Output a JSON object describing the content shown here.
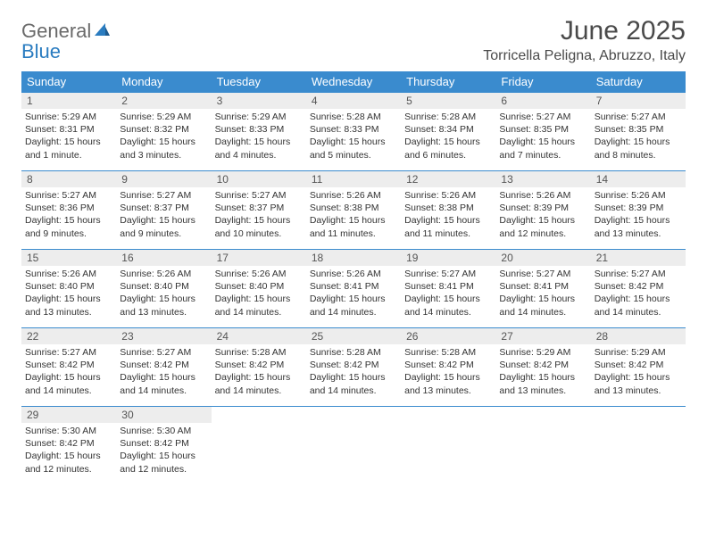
{
  "logo": {
    "word1": "General",
    "word2": "Blue"
  },
  "title": "June 2025",
  "location": "Torricella Peligna, Abruzzo, Italy",
  "header_bg": "#3a8bce",
  "day_headers": [
    "Sunday",
    "Monday",
    "Tuesday",
    "Wednesday",
    "Thursday",
    "Friday",
    "Saturday"
  ],
  "weeks": [
    [
      {
        "n": "1",
        "sr": "Sunrise: 5:29 AM",
        "ss": "Sunset: 8:31 PM",
        "dl": "Daylight: 15 hours and 1 minute."
      },
      {
        "n": "2",
        "sr": "Sunrise: 5:29 AM",
        "ss": "Sunset: 8:32 PM",
        "dl": "Daylight: 15 hours and 3 minutes."
      },
      {
        "n": "3",
        "sr": "Sunrise: 5:29 AM",
        "ss": "Sunset: 8:33 PM",
        "dl": "Daylight: 15 hours and 4 minutes."
      },
      {
        "n": "4",
        "sr": "Sunrise: 5:28 AM",
        "ss": "Sunset: 8:33 PM",
        "dl": "Daylight: 15 hours and 5 minutes."
      },
      {
        "n": "5",
        "sr": "Sunrise: 5:28 AM",
        "ss": "Sunset: 8:34 PM",
        "dl": "Daylight: 15 hours and 6 minutes."
      },
      {
        "n": "6",
        "sr": "Sunrise: 5:27 AM",
        "ss": "Sunset: 8:35 PM",
        "dl": "Daylight: 15 hours and 7 minutes."
      },
      {
        "n": "7",
        "sr": "Sunrise: 5:27 AM",
        "ss": "Sunset: 8:35 PM",
        "dl": "Daylight: 15 hours and 8 minutes."
      }
    ],
    [
      {
        "n": "8",
        "sr": "Sunrise: 5:27 AM",
        "ss": "Sunset: 8:36 PM",
        "dl": "Daylight: 15 hours and 9 minutes."
      },
      {
        "n": "9",
        "sr": "Sunrise: 5:27 AM",
        "ss": "Sunset: 8:37 PM",
        "dl": "Daylight: 15 hours and 9 minutes."
      },
      {
        "n": "10",
        "sr": "Sunrise: 5:27 AM",
        "ss": "Sunset: 8:37 PM",
        "dl": "Daylight: 15 hours and 10 minutes."
      },
      {
        "n": "11",
        "sr": "Sunrise: 5:26 AM",
        "ss": "Sunset: 8:38 PM",
        "dl": "Daylight: 15 hours and 11 minutes."
      },
      {
        "n": "12",
        "sr": "Sunrise: 5:26 AM",
        "ss": "Sunset: 8:38 PM",
        "dl": "Daylight: 15 hours and 11 minutes."
      },
      {
        "n": "13",
        "sr": "Sunrise: 5:26 AM",
        "ss": "Sunset: 8:39 PM",
        "dl": "Daylight: 15 hours and 12 minutes."
      },
      {
        "n": "14",
        "sr": "Sunrise: 5:26 AM",
        "ss": "Sunset: 8:39 PM",
        "dl": "Daylight: 15 hours and 13 minutes."
      }
    ],
    [
      {
        "n": "15",
        "sr": "Sunrise: 5:26 AM",
        "ss": "Sunset: 8:40 PM",
        "dl": "Daylight: 15 hours and 13 minutes."
      },
      {
        "n": "16",
        "sr": "Sunrise: 5:26 AM",
        "ss": "Sunset: 8:40 PM",
        "dl": "Daylight: 15 hours and 13 minutes."
      },
      {
        "n": "17",
        "sr": "Sunrise: 5:26 AM",
        "ss": "Sunset: 8:40 PM",
        "dl": "Daylight: 15 hours and 14 minutes."
      },
      {
        "n": "18",
        "sr": "Sunrise: 5:26 AM",
        "ss": "Sunset: 8:41 PM",
        "dl": "Daylight: 15 hours and 14 minutes."
      },
      {
        "n": "19",
        "sr": "Sunrise: 5:27 AM",
        "ss": "Sunset: 8:41 PM",
        "dl": "Daylight: 15 hours and 14 minutes."
      },
      {
        "n": "20",
        "sr": "Sunrise: 5:27 AM",
        "ss": "Sunset: 8:41 PM",
        "dl": "Daylight: 15 hours and 14 minutes."
      },
      {
        "n": "21",
        "sr": "Sunrise: 5:27 AM",
        "ss": "Sunset: 8:42 PM",
        "dl": "Daylight: 15 hours and 14 minutes."
      }
    ],
    [
      {
        "n": "22",
        "sr": "Sunrise: 5:27 AM",
        "ss": "Sunset: 8:42 PM",
        "dl": "Daylight: 15 hours and 14 minutes."
      },
      {
        "n": "23",
        "sr": "Sunrise: 5:27 AM",
        "ss": "Sunset: 8:42 PM",
        "dl": "Daylight: 15 hours and 14 minutes."
      },
      {
        "n": "24",
        "sr": "Sunrise: 5:28 AM",
        "ss": "Sunset: 8:42 PM",
        "dl": "Daylight: 15 hours and 14 minutes."
      },
      {
        "n": "25",
        "sr": "Sunrise: 5:28 AM",
        "ss": "Sunset: 8:42 PM",
        "dl": "Daylight: 15 hours and 14 minutes."
      },
      {
        "n": "26",
        "sr": "Sunrise: 5:28 AM",
        "ss": "Sunset: 8:42 PM",
        "dl": "Daylight: 15 hours and 13 minutes."
      },
      {
        "n": "27",
        "sr": "Sunrise: 5:29 AM",
        "ss": "Sunset: 8:42 PM",
        "dl": "Daylight: 15 hours and 13 minutes."
      },
      {
        "n": "28",
        "sr": "Sunrise: 5:29 AM",
        "ss": "Sunset: 8:42 PM",
        "dl": "Daylight: 15 hours and 13 minutes."
      }
    ],
    [
      {
        "n": "29",
        "sr": "Sunrise: 5:30 AM",
        "ss": "Sunset: 8:42 PM",
        "dl": "Daylight: 15 hours and 12 minutes."
      },
      {
        "n": "30",
        "sr": "Sunrise: 5:30 AM",
        "ss": "Sunset: 8:42 PM",
        "dl": "Daylight: 15 hours and 12 minutes."
      },
      null,
      null,
      null,
      null,
      null
    ]
  ]
}
